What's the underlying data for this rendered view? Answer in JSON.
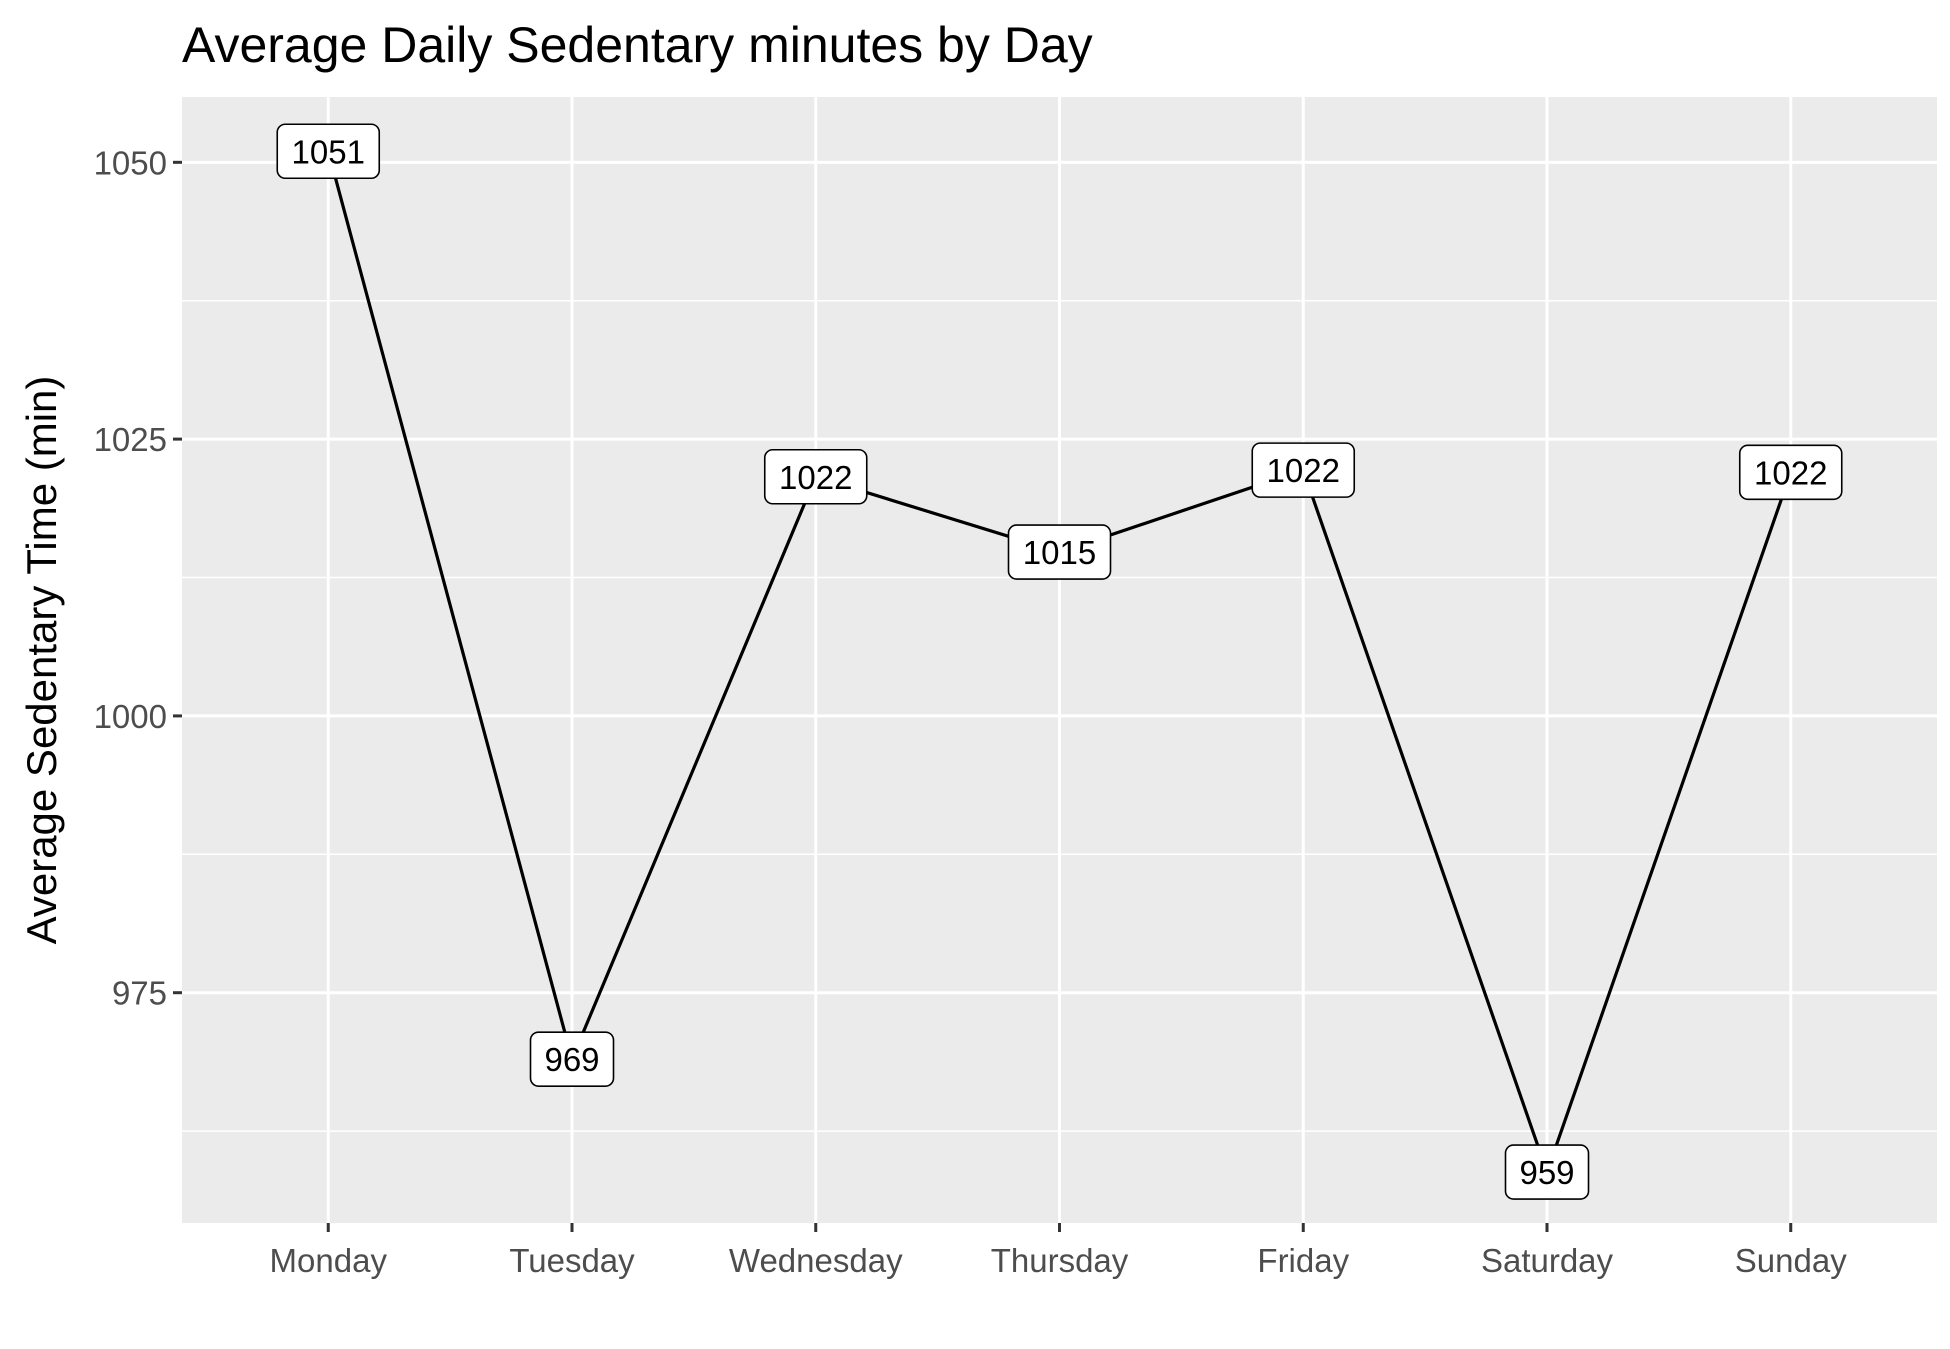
{
  "chart_data": {
    "type": "line",
    "title": "Average Daily Sedentary minutes by Day",
    "xlabel": "",
    "ylabel": "Average Sedentary Time (min)",
    "categories": [
      "Monday",
      "Tuesday",
      "Wednesday",
      "Thursday",
      "Friday",
      "Saturday",
      "Sunday"
    ],
    "values": [
      1051,
      969,
      1021.6,
      1014.8,
      1022.2,
      958.8,
      1022
    ],
    "data_labels": [
      "1051",
      "969",
      "1022",
      "1015",
      "1022",
      "959",
      "1022"
    ],
    "ylim": [
      954.2,
      1055.9
    ],
    "yticks": [
      975,
      1000,
      1025,
      1050
    ],
    "grid": true,
    "legend": "none",
    "colors": {
      "panel": "#ebebeb",
      "grid": "#ffffff",
      "line": "#000000",
      "label_fill": "#ffffff",
      "tick_text": "#4d4d4d"
    }
  }
}
